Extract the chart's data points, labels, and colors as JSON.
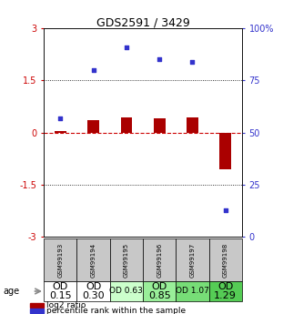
{
  "title": "GDS2591 / 3429",
  "samples": [
    "GSM99193",
    "GSM99194",
    "GSM99195",
    "GSM99196",
    "GSM99197",
    "GSM99198"
  ],
  "log2_ratio": [
    0.05,
    0.35,
    0.45,
    0.4,
    0.45,
    -1.05
  ],
  "percentile_rank": [
    57,
    80,
    91,
    85,
    84,
    13
  ],
  "ylim_left": [
    -3,
    3
  ],
  "ylim_right": [
    0,
    100
  ],
  "yticks_left": [
    -3,
    -1.5,
    0,
    1.5,
    3
  ],
  "yticks_right": [
    0,
    25,
    50,
    75,
    100
  ],
  "ytick_labels_left": [
    "-3",
    "-1.5",
    "0",
    "1.5",
    "3"
  ],
  "ytick_labels_right": [
    "0",
    "25",
    "50",
    "75",
    "100%"
  ],
  "hlines": [
    1.5,
    -1.5
  ],
  "bar_color": "#aa0000",
  "dot_color": "#3333cc",
  "zero_line_color": "#cc0000",
  "row1_bg": "#c8c8c8",
  "row2_colors": [
    "#ffffff",
    "#ffffff",
    "#ccffcc",
    "#99ee99",
    "#77dd77",
    "#55cc55"
  ],
  "row2_labels": [
    "OD\n0.15",
    "OD\n0.30",
    "OD 0.63",
    "OD\n0.85",
    "OD 1.07",
    "OD\n1.29"
  ],
  "row2_fontsizes": [
    8,
    8,
    6.5,
    8,
    6.5,
    8
  ],
  "age_label": "age",
  "legend_red": "log2 ratio",
  "legend_blue": "percentile rank within the sample",
  "background_color": "#ffffff"
}
